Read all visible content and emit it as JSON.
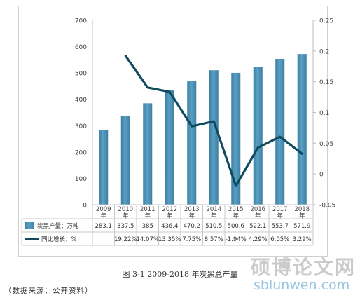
{
  "chart_data": {
    "type": "bar+line",
    "categories": [
      "2009年",
      "2010年",
      "2011年",
      "2012年",
      "2013年",
      "2014年",
      "2015年",
      "2016年",
      "2017年",
      "2018年"
    ],
    "series": [
      {
        "name": "炭黑产量：万吨",
        "axis": "left",
        "type": "bar",
        "values": [
          283.1,
          337.5,
          385,
          436.4,
          470.2,
          510.5,
          500.6,
          522.1,
          553.7,
          571.9
        ]
      },
      {
        "name": "同比增长：%",
        "axis": "right",
        "type": "line",
        "values": [
          null,
          0.1922,
          0.1407,
          0.1335,
          0.0775,
          0.0857,
          -0.0194,
          0.0429,
          0.0605,
          0.0329
        ]
      }
    ],
    "table": {
      "bar_row": [
        "283.1",
        "337.5",
        "385",
        "436.4",
        "470.2",
        "510.5",
        "500.6",
        "522.1",
        "553.7",
        "571.9"
      ],
      "line_row": [
        "",
        "19.22%",
        "14.07%",
        "13.35%",
        "7.75%",
        "8.57%",
        "-1.94%",
        "4.29%",
        "6.05%",
        "3.29%"
      ]
    },
    "y_left": {
      "ticks": [
        "0",
        "100",
        "200",
        "300",
        "400",
        "500",
        "600",
        "700"
      ],
      "lim": [
        0,
        700
      ]
    },
    "y_right": {
      "ticks": [
        "-0.05",
        "0",
        "0.05",
        "0.1",
        "0.15",
        "0.2",
        "0.25"
      ],
      "lim": [
        -0.05,
        0.25
      ]
    },
    "grid": false,
    "legend": "data-table-bottom",
    "colors": {
      "bar": "#5aa0c4",
      "bar_dark": "#3c7fa3",
      "line": "#0f4a5e"
    }
  },
  "caption": "图 3-1 2009-2018 年炭黑总产量",
  "source": "（数据来源：公开资料）",
  "watermark": {
    "cn": "硕博论文网",
    "url": "sblunwen.com"
  }
}
